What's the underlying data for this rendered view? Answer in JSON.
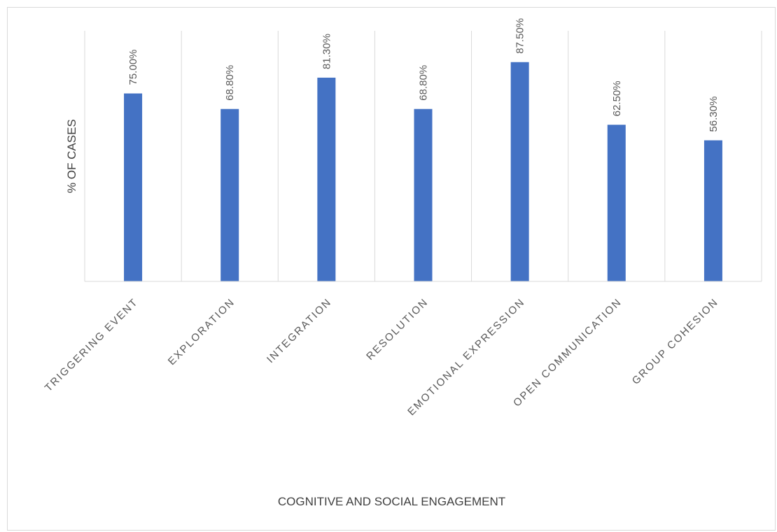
{
  "chart_data": {
    "type": "bar",
    "title": "",
    "xlabel": "COGNITIVE AND SOCIAL ENGAGEMENT",
    "ylabel": "% OF CASES",
    "categories": [
      "TRIGGERING EVENT",
      "EXPLORATION",
      "INTEGRATION",
      "RESOLUTION",
      "EMOTIONAL EXPRESSION",
      "OPEN COMMUNICATION",
      "GROUP COHESION"
    ],
    "values": [
      75.0,
      68.8,
      81.3,
      68.8,
      87.5,
      62.5,
      56.3
    ],
    "data_labels": [
      "75.00%",
      "68.80%",
      "81.30%",
      "68.80%",
      "87.50%",
      "62.50%",
      "56.30%"
    ],
    "ylim": [
      0,
      100
    ],
    "gridlines": "vertical",
    "legend": "none",
    "bar_color": "#4472C4",
    "grid_color": "#d9d9d9",
    "text_color": "#595959"
  }
}
